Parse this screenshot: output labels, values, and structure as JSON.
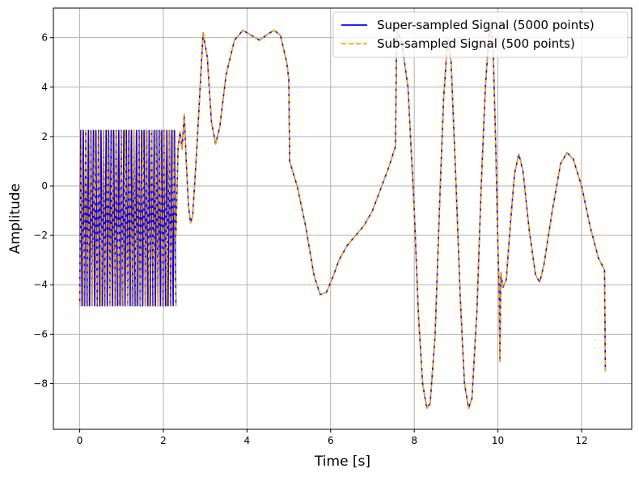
{
  "chart_data": {
    "type": "line",
    "title": "",
    "xlabel": "Time [s]",
    "ylabel": "Amplitude",
    "xlim": [
      -0.63,
      13.2
    ],
    "ylim": [
      -9.85,
      7.2
    ],
    "xticks": [
      0,
      2,
      4,
      6,
      8,
      10,
      12
    ],
    "yticks": [
      6,
      4,
      2,
      0,
      -2,
      -4,
      -6,
      -8
    ],
    "grid": true,
    "legend_position": "top-right",
    "colors": {
      "super": "#0000ff",
      "sub": "#ffa500",
      "grid": "#b0b0b0"
    },
    "series": [
      {
        "name": "Super-sampled Signal (5000 points)",
        "style": "solid",
        "segments": [
          {
            "kind": "burst",
            "x_start": 0.0,
            "x_end": 2.3,
            "y_min": -4.85,
            "y_max": 2.25,
            "cycles": 38
          },
          {
            "kind": "curve",
            "points": [
              [
                2.3,
                -2.0
              ],
              [
                2.35,
                1.5
              ],
              [
                2.4,
                2.2
              ],
              [
                2.45,
                1.5
              ],
              [
                2.5,
                2.9
              ],
              [
                2.55,
                0.9
              ],
              [
                2.6,
                -0.8
              ],
              [
                2.65,
                -1.5
              ],
              [
                2.7,
                -1.2
              ],
              [
                2.8,
                1.5
              ],
              [
                2.95,
                6.2
              ],
              [
                3.05,
                5.2
              ],
              [
                3.15,
                2.6
              ],
              [
                3.25,
                1.7
              ],
              [
                3.35,
                2.4
              ],
              [
                3.5,
                4.5
              ],
              [
                3.7,
                5.9
              ],
              [
                3.9,
                6.3
              ],
              [
                4.1,
                6.1
              ],
              [
                4.3,
                5.9
              ],
              [
                4.5,
                6.15
              ],
              [
                4.65,
                6.3
              ],
              [
                4.8,
                6.1
              ],
              [
                4.95,
                5.0
              ],
              [
                5.0,
                4.3
              ],
              [
                5.02,
                1.0
              ],
              [
                5.2,
                0.0
              ],
              [
                5.4,
                -1.6
              ],
              [
                5.6,
                -3.6
              ],
              [
                5.75,
                -4.4
              ],
              [
                5.9,
                -4.3
              ],
              [
                6.05,
                -3.7
              ],
              [
                6.2,
                -3.0
              ],
              [
                6.4,
                -2.4
              ],
              [
                6.6,
                -2.0
              ],
              [
                6.8,
                -1.6
              ],
              [
                7.0,
                -1.0
              ],
              [
                7.2,
                -0.1
              ],
              [
                7.4,
                0.8
              ],
              [
                7.55,
                1.6
              ],
              [
                7.58,
                6.3
              ],
              [
                7.7,
                5.8
              ],
              [
                7.85,
                4.0
              ],
              [
                8.0,
                -1.0
              ],
              [
                8.1,
                -5.2
              ],
              [
                8.2,
                -8.0
              ],
              [
                8.3,
                -9.0
              ],
              [
                8.38,
                -8.8
              ],
              [
                8.5,
                -6.0
              ],
              [
                8.6,
                -1.0
              ],
              [
                8.7,
                3.5
              ],
              [
                8.8,
                6.0
              ],
              [
                8.88,
                5.0
              ],
              [
                9.0,
                0.0
              ],
              [
                9.1,
                -4.5
              ],
              [
                9.2,
                -8.0
              ],
              [
                9.3,
                -9.0
              ],
              [
                9.38,
                -8.6
              ],
              [
                9.5,
                -5.0
              ],
              [
                9.6,
                0.0
              ],
              [
                9.7,
                4.0
              ],
              [
                9.8,
                6.5
              ],
              [
                9.88,
                5.8
              ],
              [
                9.95,
                1.5
              ],
              [
                10.0,
                -2.5
              ],
              [
                10.03,
                -4.2
              ],
              [
                10.05,
                -7.1
              ],
              [
                10.07,
                -3.5
              ],
              [
                10.12,
                -4.1
              ],
              [
                10.2,
                -3.8
              ],
              [
                10.3,
                -1.5
              ],
              [
                10.4,
                0.5
              ],
              [
                10.5,
                1.3
              ],
              [
                10.6,
                0.6
              ],
              [
                10.75,
                -1.8
              ],
              [
                10.9,
                -3.6
              ],
              [
                11.0,
                -3.9
              ],
              [
                11.1,
                -3.2
              ],
              [
                11.3,
                -1.0
              ],
              [
                11.5,
                0.9
              ],
              [
                11.65,
                1.35
              ],
              [
                11.8,
                1.1
              ],
              [
                12.0,
                0.0
              ],
              [
                12.2,
                -1.6
              ],
              [
                12.4,
                -2.9
              ],
              [
                12.55,
                -3.4
              ],
              [
                12.57,
                -7.5
              ]
            ]
          }
        ]
      },
      {
        "name": "Sub-sampled Signal (500 points)",
        "style": "dashed",
        "segments": [
          {
            "kind": "burst",
            "x_start": 0.0,
            "x_end": 2.3,
            "y_min": -4.85,
            "y_max": 2.25,
            "cycles": 22
          },
          {
            "kind": "curve",
            "points": [
              [
                2.3,
                -2.0
              ],
              [
                2.35,
                1.5
              ],
              [
                2.4,
                2.2
              ],
              [
                2.45,
                1.5
              ],
              [
                2.5,
                2.9
              ],
              [
                2.55,
                0.9
              ],
              [
                2.6,
                -0.8
              ],
              [
                2.65,
                -1.5
              ],
              [
                2.7,
                -1.2
              ],
              [
                2.8,
                1.5
              ],
              [
                2.95,
                6.2
              ],
              [
                3.05,
                5.2
              ],
              [
                3.15,
                2.6
              ],
              [
                3.25,
                1.7
              ],
              [
                3.35,
                2.4
              ],
              [
                3.5,
                4.5
              ],
              [
                3.7,
                5.9
              ],
              [
                3.9,
                6.3
              ],
              [
                4.1,
                6.1
              ],
              [
                4.3,
                5.9
              ],
              [
                4.5,
                6.15
              ],
              [
                4.65,
                6.3
              ],
              [
                4.8,
                6.1
              ],
              [
                4.95,
                5.0
              ],
              [
                5.0,
                4.3
              ],
              [
                5.02,
                1.0
              ],
              [
                5.2,
                0.0
              ],
              [
                5.4,
                -1.6
              ],
              [
                5.6,
                -3.6
              ],
              [
                5.75,
                -4.4
              ],
              [
                5.9,
                -4.3
              ],
              [
                6.05,
                -3.7
              ],
              [
                6.2,
                -3.0
              ],
              [
                6.4,
                -2.4
              ],
              [
                6.6,
                -2.0
              ],
              [
                6.8,
                -1.6
              ],
              [
                7.0,
                -1.0
              ],
              [
                7.2,
                -0.1
              ],
              [
                7.4,
                0.8
              ],
              [
                7.55,
                1.6
              ],
              [
                7.58,
                6.3
              ],
              [
                7.7,
                5.8
              ],
              [
                7.85,
                4.0
              ],
              [
                8.0,
                -1.0
              ],
              [
                8.1,
                -5.2
              ],
              [
                8.2,
                -8.0
              ],
              [
                8.3,
                -9.0
              ],
              [
                8.38,
                -8.8
              ],
              [
                8.5,
                -6.0
              ],
              [
                8.6,
                -1.0
              ],
              [
                8.7,
                3.5
              ],
              [
                8.8,
                6.0
              ],
              [
                8.88,
                5.0
              ],
              [
                9.0,
                0.0
              ],
              [
                9.1,
                -4.5
              ],
              [
                9.2,
                -8.0
              ],
              [
                9.3,
                -9.0
              ],
              [
                9.38,
                -8.6
              ],
              [
                9.5,
                -5.0
              ],
              [
                9.6,
                0.0
              ],
              [
                9.7,
                4.0
              ],
              [
                9.8,
                6.5
              ],
              [
                9.88,
                5.8
              ],
              [
                9.95,
                1.5
              ],
              [
                10.0,
                -2.5
              ],
              [
                10.03,
                -4.2
              ],
              [
                10.05,
                -7.1
              ],
              [
                10.07,
                -3.5
              ],
              [
                10.12,
                -4.1
              ],
              [
                10.2,
                -3.8
              ],
              [
                10.3,
                -1.5
              ],
              [
                10.4,
                0.5
              ],
              [
                10.5,
                1.3
              ],
              [
                10.6,
                0.6
              ],
              [
                10.75,
                -1.8
              ],
              [
                10.9,
                -3.6
              ],
              [
                11.0,
                -3.9
              ],
              [
                11.1,
                -3.2
              ],
              [
                11.3,
                -1.0
              ],
              [
                11.5,
                0.9
              ],
              [
                11.65,
                1.35
              ],
              [
                11.8,
                1.1
              ],
              [
                12.0,
                0.0
              ],
              [
                12.2,
                -1.6
              ],
              [
                12.4,
                -2.9
              ],
              [
                12.55,
                -3.4
              ],
              [
                12.57,
                -7.5
              ]
            ]
          }
        ]
      }
    ]
  }
}
